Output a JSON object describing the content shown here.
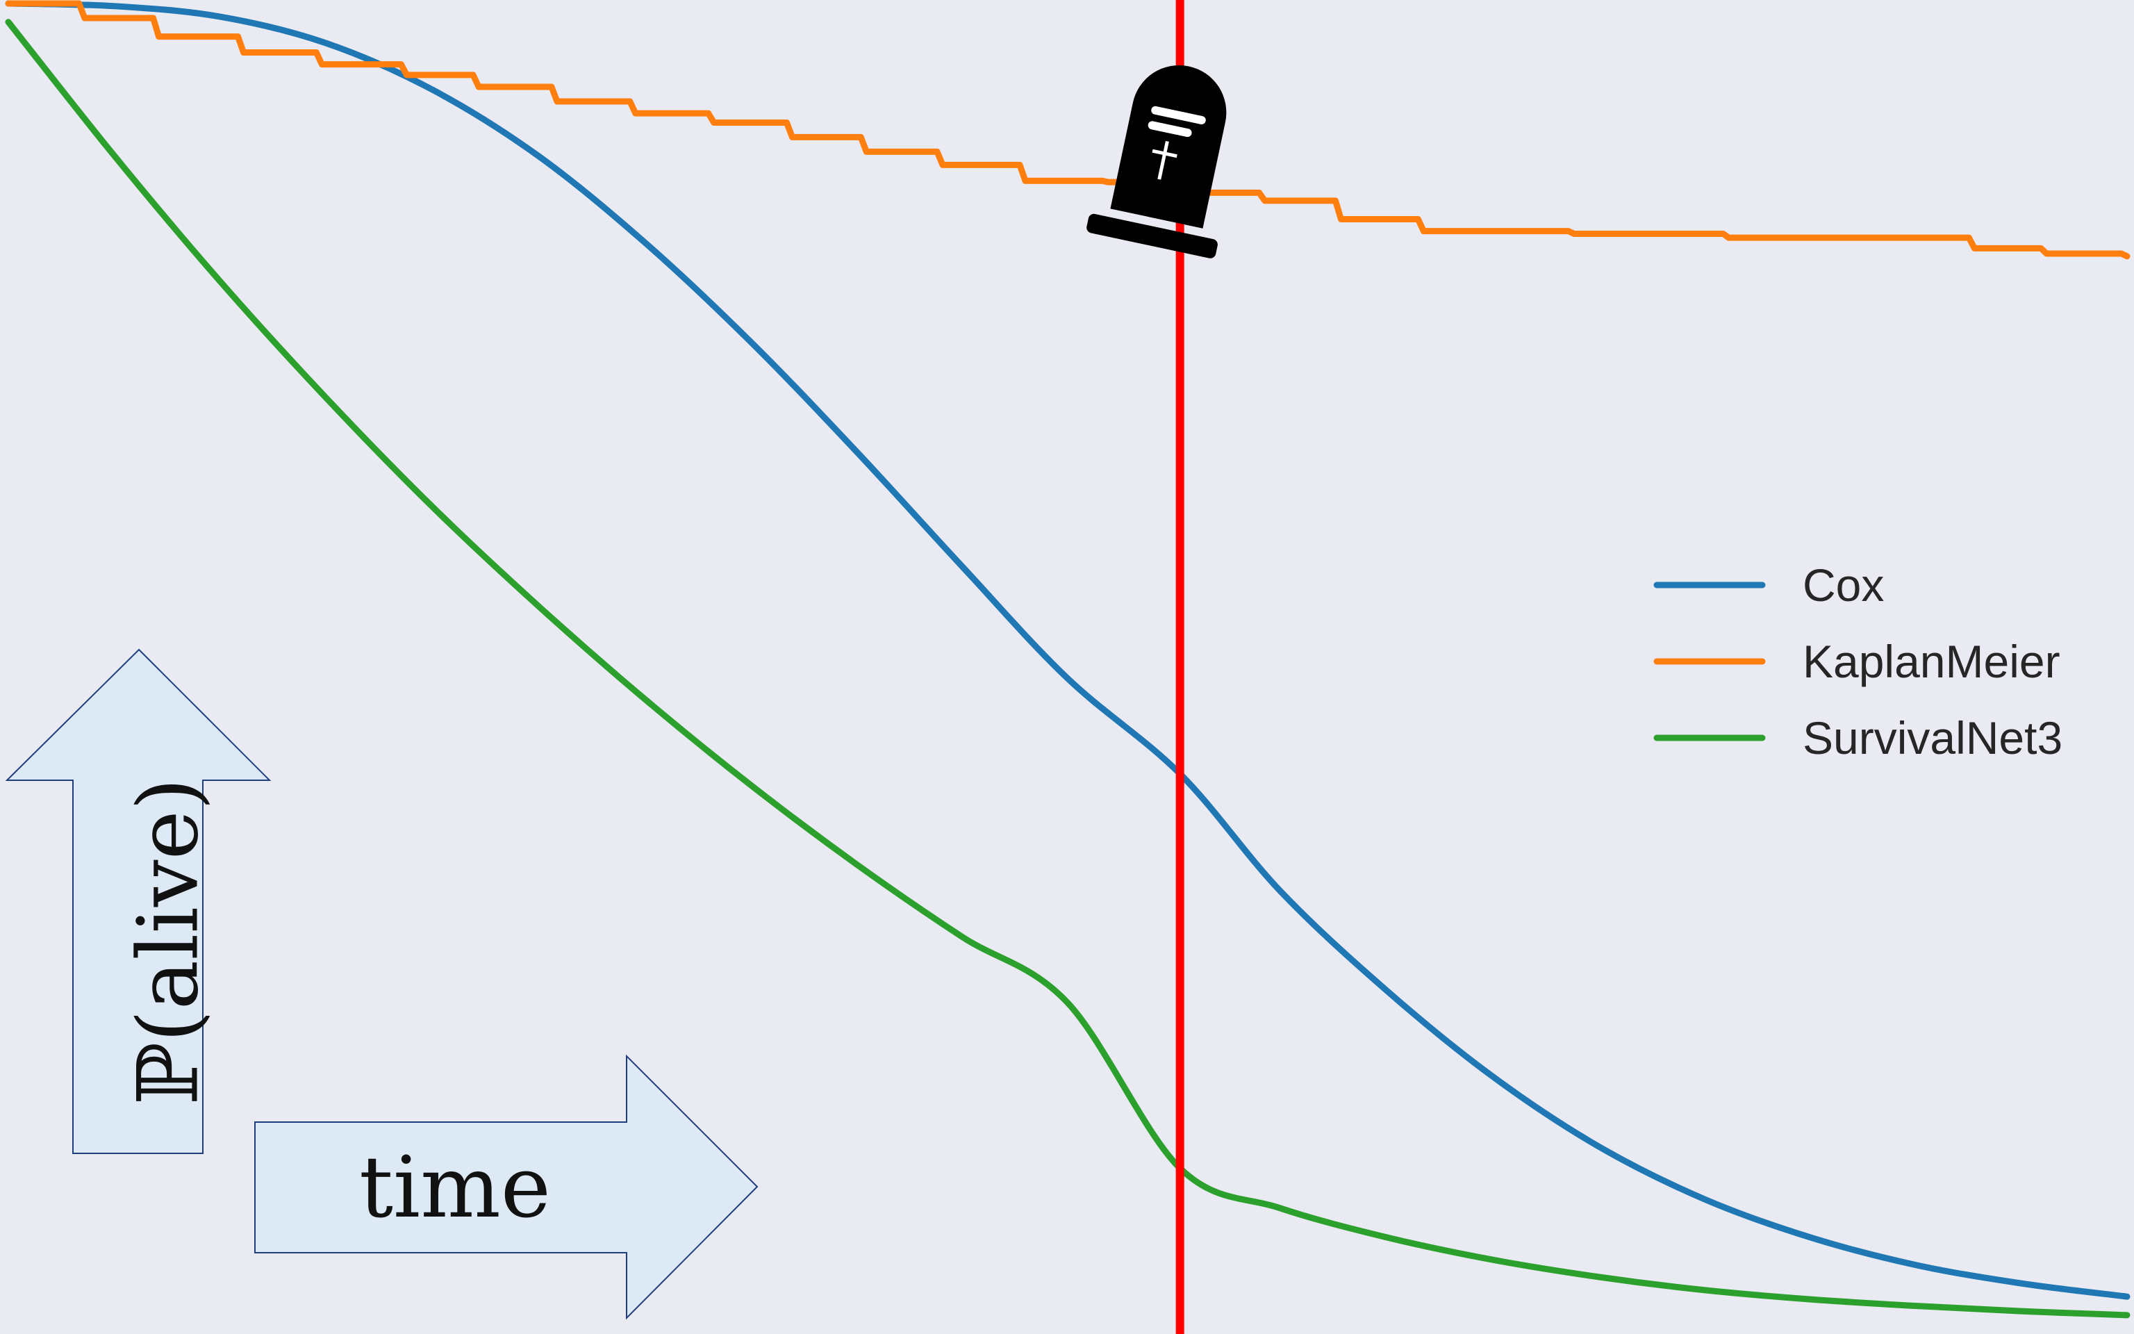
{
  "chart_data": {
    "type": "line",
    "title": "",
    "xlabel": "time",
    "ylabel": "ℙ(alive)",
    "xlim": [
      0,
      1
    ],
    "ylim": [
      0,
      1
    ],
    "grid": false,
    "legend_position": "right",
    "event_marker": {
      "x": 0.553,
      "icon": "tombstone-icon",
      "color": "#ff0000"
    },
    "series": [
      {
        "name": "Cox",
        "color": "#1f77b4",
        "x": [
          0,
          0.05,
          0.1,
          0.15,
          0.2,
          0.25,
          0.3,
          0.35,
          0.4,
          0.45,
          0.5,
          0.553,
          0.6,
          0.65,
          0.7,
          0.75,
          0.8,
          0.85,
          0.9,
          0.95,
          1.0
        ],
        "y": [
          1.0,
          0.998,
          0.99,
          0.97,
          0.935,
          0.885,
          0.82,
          0.745,
          0.662,
          0.575,
          0.49,
          0.418,
          0.33,
          0.255,
          0.19,
          0.137,
          0.097,
          0.068,
          0.047,
          0.033,
          0.023
        ]
      },
      {
        "name": "KaplanMeier",
        "color": "#ff7f0e",
        "x": [
          0,
          0.036,
          0.071,
          0.111,
          0.148,
          0.188,
          0.222,
          0.259,
          0.296,
          0.333,
          0.37,
          0.405,
          0.441,
          0.48,
          0.519,
          0.553,
          0.593,
          0.629,
          0.668,
          0.739,
          0.812,
          0.928,
          0.962,
          1.0
        ],
        "y": [
          1.0,
          0.989,
          0.975,
          0.963,
          0.954,
          0.946,
          0.937,
          0.926,
          0.917,
          0.91,
          0.899,
          0.888,
          0.878,
          0.866,
          0.865,
          0.857,
          0.851,
          0.837,
          0.828,
          0.826,
          0.823,
          0.815,
          0.811,
          0.809
        ]
      },
      {
        "name": "SurvivalNet3",
        "color": "#2ca02c",
        "x": [
          0,
          0.05,
          0.1,
          0.15,
          0.2,
          0.25,
          0.3,
          0.35,
          0.4,
          0.45,
          0.5,
          0.553,
          0.6,
          0.65,
          0.7,
          0.75,
          0.8,
          0.85,
          0.9,
          0.95,
          1.0
        ],
        "y": [
          0.986,
          0.885,
          0.79,
          0.702,
          0.62,
          0.545,
          0.475,
          0.41,
          0.35,
          0.295,
          0.245,
          0.12,
          0.09,
          0.068,
          0.051,
          0.038,
          0.028,
          0.021,
          0.016,
          0.012,
          0.009
        ]
      }
    ]
  }
}
